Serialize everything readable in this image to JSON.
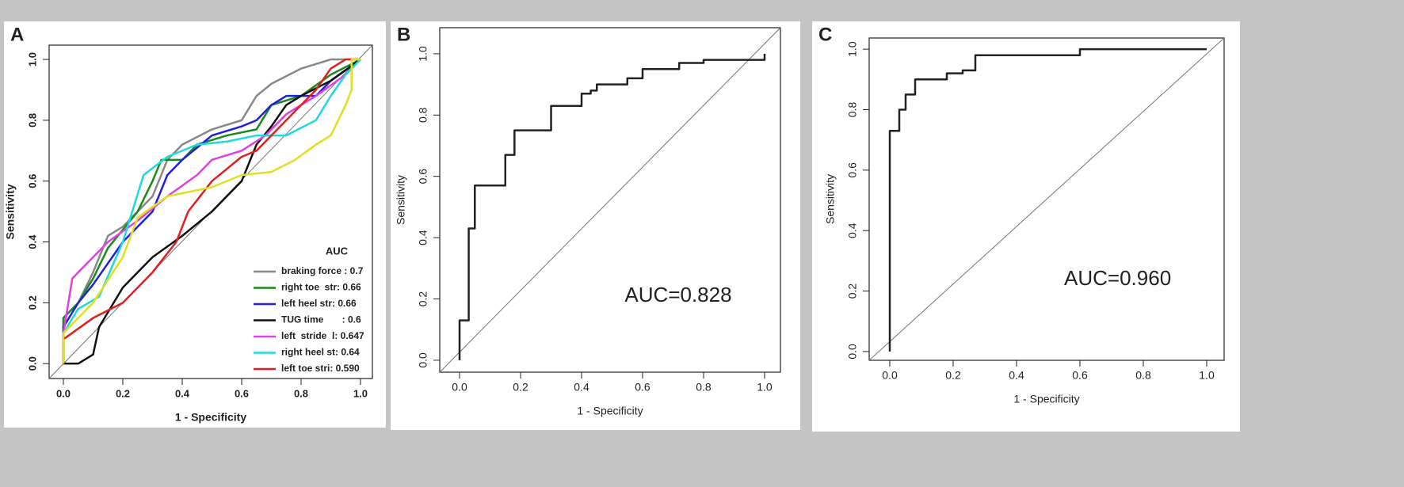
{
  "chart_data": [
    {
      "type": "line",
      "label": "A",
      "xlabel": "1 - Specificity",
      "ylabel": "Sensitivity",
      "xlim": [
        -0.048,
        1.04
      ],
      "ylim": [
        -0.049,
        1.047
      ],
      "xticks": [
        {
          "value": 0,
          "label": "0.0"
        },
        0.2,
        0.4,
        0.6,
        0.8,
        {
          "value": 1,
          "label": "1.0"
        }
      ],
      "yticks": [
        {
          "value": 0,
          "label": "0.0"
        },
        0.2,
        0.4,
        0.6,
        0.8,
        {
          "value": 1,
          "label": "1.0"
        }
      ],
      "legend_title": "AUC",
      "legend": "lower right",
      "series": [
        {
          "name": "braking force : 0.7",
          "color": "#888888",
          "x": [
            0,
            0,
            0.05,
            0.1,
            0.15,
            0.2,
            0.3,
            0.35,
            0.4,
            0.5,
            0.6,
            0.65,
            0.7,
            0.8,
            0.9,
            1
          ],
          "values": [
            0,
            0.15,
            0.2,
            0.3,
            0.42,
            0.45,
            0.55,
            0.67,
            0.72,
            0.77,
            0.8,
            0.88,
            0.92,
            0.97,
            1,
            1
          ]
        },
        {
          "name": "right toe  str: 0.66",
          "color": "#1a8a1a",
          "x": [
            0,
            0,
            0.05,
            0.1,
            0.15,
            0.25,
            0.3,
            0.33,
            0.4,
            0.45,
            0.55,
            0.65,
            0.7,
            0.8,
            0.9,
            1
          ],
          "values": [
            0,
            0.15,
            0.2,
            0.28,
            0.38,
            0.5,
            0.6,
            0.67,
            0.67,
            0.72,
            0.75,
            0.77,
            0.85,
            0.88,
            0.95,
            1
          ]
        },
        {
          "name": "left heel str: 0.66",
          "color": "#2020e0",
          "x": [
            0,
            0,
            0.05,
            0.1,
            0.2,
            0.3,
            0.35,
            0.4,
            0.5,
            0.6,
            0.65,
            0.7,
            0.75,
            0.85,
            0.9,
            1
          ],
          "values": [
            0,
            0.12,
            0.2,
            0.26,
            0.4,
            0.5,
            0.62,
            0.67,
            0.75,
            0.78,
            0.8,
            0.85,
            0.88,
            0.88,
            0.93,
            1
          ]
        },
        {
          "name": "TUG time       : 0.6",
          "color": "#111111",
          "x": [
            0,
            0.05,
            0.1,
            0.12,
            0.2,
            0.3,
            0.4,
            0.5,
            0.55,
            0.6,
            0.65,
            0.7,
            0.75,
            0.8,
            0.9,
            1
          ],
          "values": [
            0,
            0,
            0.03,
            0.12,
            0.25,
            0.35,
            0.42,
            0.5,
            0.55,
            0.6,
            0.72,
            0.78,
            0.85,
            0.88,
            0.93,
            1
          ]
        },
        {
          "name": "left  stride  l: 0.647",
          "color": "#e040e0",
          "x": [
            0,
            0,
            0.03,
            0.08,
            0.15,
            0.25,
            0.35,
            0.45,
            0.5,
            0.6,
            0.68,
            0.75,
            0.85,
            0.95,
            1
          ],
          "values": [
            0,
            0.1,
            0.28,
            0.33,
            0.4,
            0.47,
            0.55,
            0.62,
            0.67,
            0.7,
            0.75,
            0.82,
            0.88,
            0.95,
            1
          ]
        },
        {
          "name": "right heel st: 0.64",
          "color": "#20d8e0",
          "x": [
            0,
            0,
            0.05,
            0.12,
            0.2,
            0.27,
            0.35,
            0.45,
            0.55,
            0.65,
            0.75,
            0.85,
            0.9,
            0.95,
            1
          ],
          "values": [
            0,
            0.1,
            0.18,
            0.22,
            0.4,
            0.62,
            0.68,
            0.72,
            0.73,
            0.75,
            0.75,
            0.8,
            0.88,
            0.95,
            1
          ]
        },
        {
          "name": "left toe stri: 0.590",
          "color": "#e02020",
          "x": [
            0,
            0,
            0.1,
            0.2,
            0.3,
            0.38,
            0.42,
            0.5,
            0.6,
            0.65,
            0.7,
            0.8,
            0.85,
            0.9,
            0.95,
            1
          ],
          "values": [
            0,
            0.08,
            0.15,
            0.2,
            0.3,
            0.4,
            0.5,
            0.6,
            0.68,
            0.7,
            0.75,
            0.85,
            0.9,
            0.97,
            1,
            1
          ]
        },
        {
          "color": "#e0e020",
          "x": [
            0,
            0,
            0.1,
            0.2,
            0.25,
            0.35,
            0.5,
            0.6,
            0.7,
            0.78,
            0.85,
            0.9,
            0.95,
            0.97,
            0.97,
            1
          ],
          "values": [
            0,
            0.1,
            0.2,
            0.35,
            0.48,
            0.55,
            0.58,
            0.62,
            0.63,
            0.67,
            0.72,
            0.75,
            0.85,
            0.9,
            1,
            1
          ]
        }
      ]
    },
    {
      "type": "line",
      "label": "B",
      "xlabel": "1 - Specificity",
      "ylabel": "Sensitivity",
      "xlim": [
        -0.065,
        1.052
      ],
      "ylim": [
        -0.039,
        1.085
      ],
      "xticks": [
        {
          "value": 0,
          "label": "0.0"
        },
        0.2,
        0.4,
        0.6,
        0.8,
        {
          "value": 1,
          "label": "1.0"
        }
      ],
      "yticks": [
        {
          "value": 0,
          "label": "0.0"
        },
        0.2,
        0.4,
        0.6,
        0.8,
        {
          "value": 1,
          "label": "1.0"
        }
      ],
      "annotation": "AUC=0.828",
      "series": [
        {
          "color": "#222222",
          "x": [
            0,
            0,
            0.03,
            0.03,
            0.05,
            0.05,
            0.15,
            0.15,
            0.18,
            0.18,
            0.3,
            0.3,
            0.4,
            0.4,
            0.43,
            0.43,
            0.45,
            0.45,
            0.55,
            0.55,
            0.6,
            0.6,
            0.72,
            0.72,
            0.8,
            0.8,
            1,
            1
          ],
          "values": [
            0,
            0.13,
            0.13,
            0.43,
            0.43,
            0.57,
            0.57,
            0.67,
            0.67,
            0.75,
            0.75,
            0.83,
            0.83,
            0.87,
            0.87,
            0.88,
            0.88,
            0.9,
            0.9,
            0.92,
            0.92,
            0.95,
            0.95,
            0.97,
            0.97,
            0.98,
            0.98,
            1
          ]
        }
      ]
    },
    {
      "type": "line",
      "label": "C",
      "xlabel": "1 - Specificity",
      "ylabel": "Sensitivity",
      "xlim": [
        -0.065,
        1.055
      ],
      "ylim": [
        -0.029,
        1.037
      ],
      "xticks": [
        {
          "value": 0,
          "label": "0.0"
        },
        0.2,
        0.4,
        0.6,
        0.8,
        {
          "value": 1,
          "label": "1.0"
        }
      ],
      "yticks": [
        {
          "value": 0,
          "label": "0.0"
        },
        0.2,
        0.4,
        0.6,
        0.8,
        {
          "value": 1,
          "label": "1.0"
        }
      ],
      "annotation": "AUC=0.960",
      "series": [
        {
          "color": "#222222",
          "x": [
            0,
            0,
            0.03,
            0.03,
            0.05,
            0.05,
            0.08,
            0.08,
            0.18,
            0.18,
            0.23,
            0.23,
            0.27,
            0.27,
            0.6,
            0.6,
            1
          ],
          "values": [
            0,
            0.73,
            0.73,
            0.8,
            0.8,
            0.85,
            0.85,
            0.9,
            0.9,
            0.92,
            0.92,
            0.93,
            0.93,
            0.98,
            0.98,
            1,
            1
          ]
        }
      ]
    }
  ]
}
